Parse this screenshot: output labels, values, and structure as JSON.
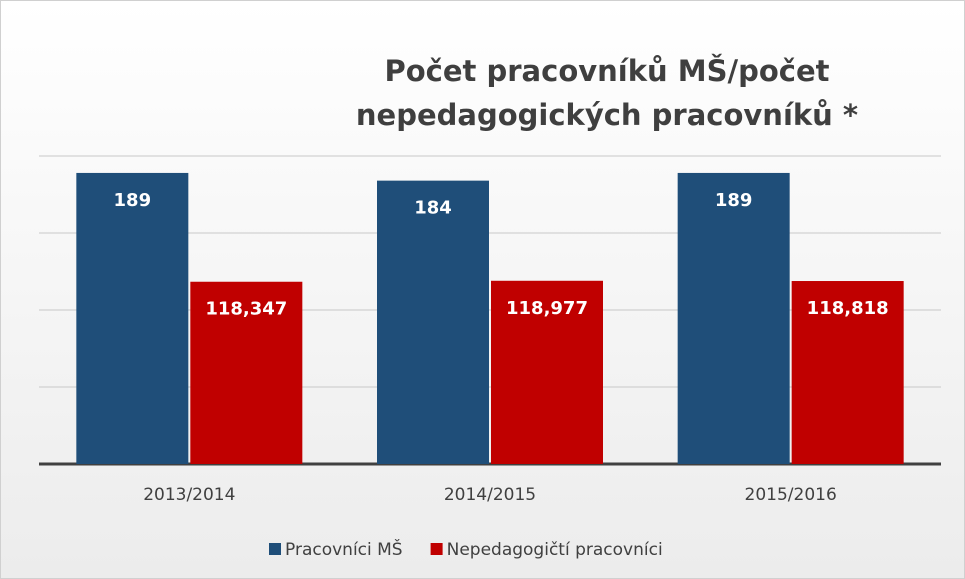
{
  "chart_data": {
    "type": "bar",
    "title": "Počet pracovníků MŠ/počet nepedagogických pracovníků *",
    "categories": [
      "2013/2014",
      "2014/2015",
      "2015/2016"
    ],
    "series": [
      {
        "name": "Pracovníci MŠ",
        "color": "#1f4e79",
        "values": [
          189,
          184,
          189
        ],
        "value_labels": [
          "189",
          "184",
          "189"
        ]
      },
      {
        "name": "Nepedagogičtí pracovníci",
        "color": "#c00000",
        "values": [
          118.347,
          118.977,
          118.818
        ],
        "value_labels": [
          "118,347",
          "118,977",
          "118,818"
        ]
      }
    ],
    "ylim": [
      0,
      200
    ],
    "yticks": [
      0,
      50,
      100,
      150,
      200
    ],
    "grid": true,
    "legend": "bottom"
  }
}
